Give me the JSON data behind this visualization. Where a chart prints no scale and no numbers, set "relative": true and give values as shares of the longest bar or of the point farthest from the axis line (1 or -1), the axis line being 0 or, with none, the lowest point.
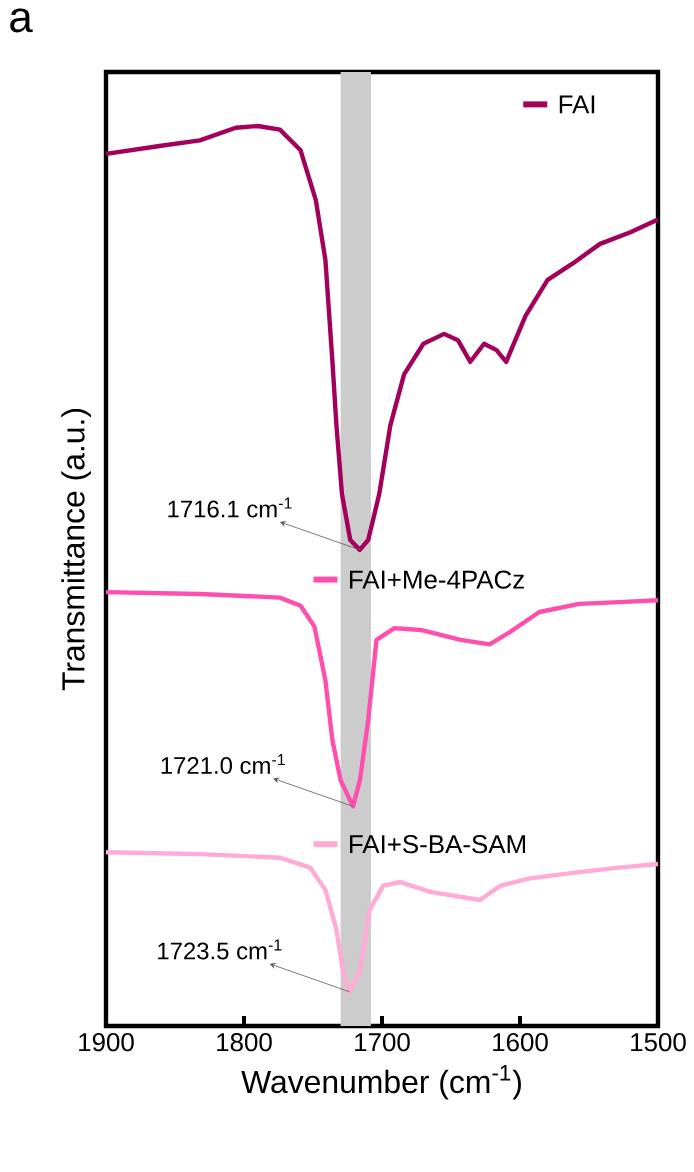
{
  "chart_data": {
    "type": "line",
    "relative": true,
    "xlabel": "Wavenumber (cm$^{-1}$)",
    "ylabel": "Transmittance (a.u.)",
    "legend": "top right",
    "xlim": [
      1900,
      1500
    ],
    "xticks": [
      1900,
      1800,
      1700,
      1600,
      1500
    ],
    "series": [
      {
        "name": "FAI",
        "color": "#a3005c",
        "x": [
          1900,
          1860,
          1832,
          1806,
          1790,
          1774,
          1759,
          1748,
          1741,
          1736,
          1733,
          1729,
          1723,
          1716.1,
          1710,
          1702,
          1694,
          1684,
          1670,
          1655,
          1645,
          1636,
          1626,
          1617,
          1610,
          1596,
          1580,
          1562,
          1542,
          1520,
          1500
        ],
        "values": [
          0.969,
          0.978,
          0.984,
          0.998,
          1.0,
          0.996,
          0.973,
          0.918,
          0.851,
          0.74,
          0.667,
          0.591,
          0.54,
          0.529,
          0.54,
          0.591,
          0.667,
          0.724,
          0.758,
          0.769,
          0.762,
          0.738,
          0.758,
          0.751,
          0.738,
          0.789,
          0.829,
          0.847,
          0.869,
          0.882,
          0.896
        ]
      },
      {
        "name": "FAI+Me-4PACz",
        "color": "#ff4fae",
        "x": [
          1900,
          1832,
          1774,
          1759,
          1749,
          1741,
          1736,
          1730,
          1721.0,
          1716,
          1710,
          1704,
          1691,
          1672,
          1643,
          1622,
          1607,
          1586,
          1557,
          1528,
          1500
        ],
        "values": [
          0.482,
          0.48,
          0.476,
          0.467,
          0.444,
          0.384,
          0.318,
          0.273,
          0.244,
          0.273,
          0.34,
          0.429,
          0.442,
          0.44,
          0.429,
          0.424,
          0.438,
          0.46,
          0.469,
          0.471,
          0.473
        ]
      },
      {
        "name": "FAI+S-BA-SAM",
        "color": "#ffabd6",
        "x": [
          1900,
          1832,
          1774,
          1752,
          1741,
          1733,
          1728,
          1723.5,
          1716,
          1709,
          1699,
          1687,
          1665,
          1629,
          1614,
          1593,
          1557,
          1528,
          1500
        ],
        "values": [
          0.193,
          0.191,
          0.187,
          0.176,
          0.151,
          0.107,
          0.058,
          0.038,
          0.062,
          0.129,
          0.156,
          0.16,
          0.149,
          0.14,
          0.156,
          0.164,
          0.171,
          0.176,
          0.18
        ]
      }
    ],
    "bands": [
      {
        "axis": "x",
        "from": 1730,
        "to": 1708,
        "color": "#cccccc"
      }
    ],
    "annotations": [
      "a",
      {
        "text": "1716.1 cm$^{-1}$",
        "x": 1716.1,
        "y": 0.529
      },
      {
        "text": "1721.0 cm$^{-1}$",
        "x": 1721.0,
        "y": 0.244
      },
      {
        "text": "1723.5 cm$^{-1}$",
        "x": 1723.5,
        "y": 0.038
      }
    ]
  }
}
